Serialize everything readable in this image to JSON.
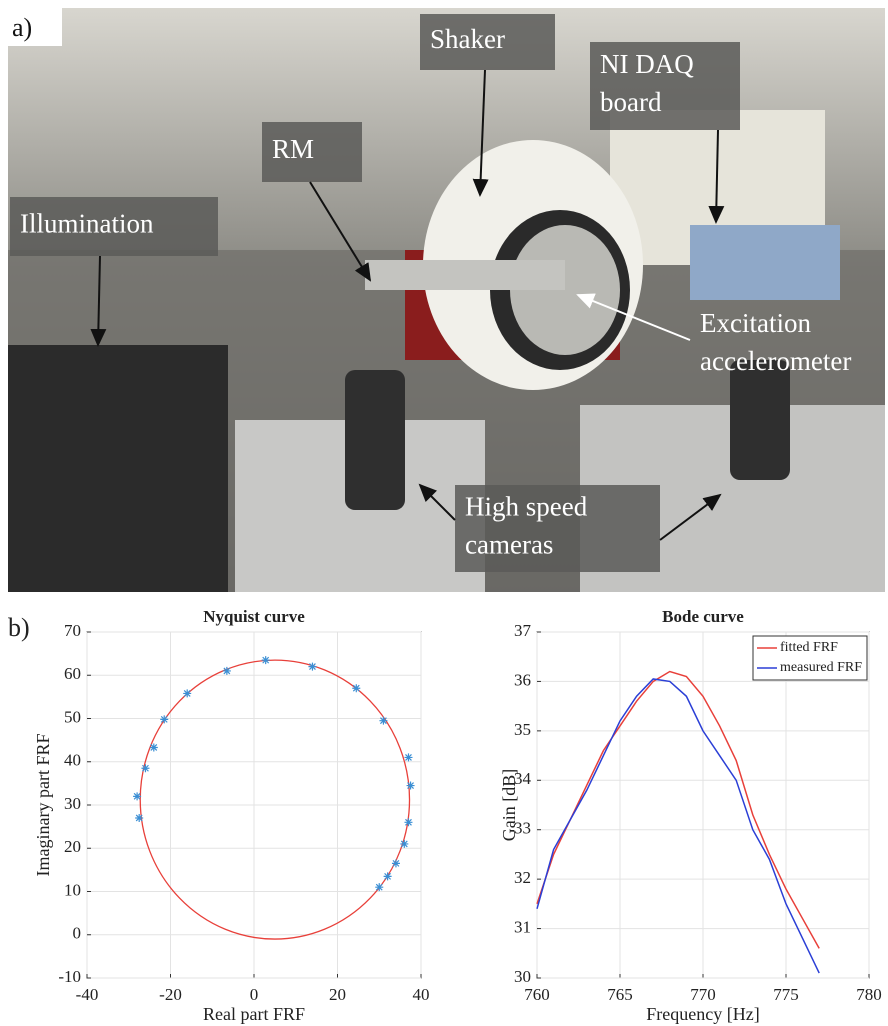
{
  "figure": {
    "panel_a": "a)",
    "panel_b": "b)",
    "photo_labels": [
      [
        "Shaker"
      ],
      [
        "NI DAQ",
        "board"
      ],
      [
        "RM"
      ],
      [
        "Illumination"
      ],
      [
        "Excitation",
        "accelerometer"
      ],
      [
        "High speed",
        "cameras"
      ]
    ]
  },
  "chart_data": [
    {
      "type": "scatter",
      "title": "Nyquist curve",
      "x_label": "Real part FRF",
      "y_label": "Imaginary part FRF",
      "xlim": [
        -40,
        40
      ],
      "xticks": [
        -40,
        -20,
        0,
        20,
        40
      ],
      "ylim": [
        -10,
        70
      ],
      "yticks": [
        -10,
        0,
        10,
        20,
        30,
        40,
        50,
        60,
        70
      ],
      "grid": true,
      "series": [
        {
          "color": "#3b8fd4",
          "marker": "*",
          "x": [
            2.8,
            14,
            24.5,
            31,
            37,
            37.5,
            37,
            36,
            34,
            32,
            30,
            -6.5,
            -16,
            -21.5,
            -24,
            -26,
            -28,
            -27.5
          ],
          "y": [
            63.5,
            62,
            57,
            49.5,
            41,
            34.5,
            26,
            21,
            16.5,
            13.5,
            11,
            61,
            55.8,
            49.8,
            43.3,
            38.5,
            32,
            27
          ]
        }
      ],
      "circle": {
        "color": "#e8403a",
        "center": [
          5,
          31.25
        ],
        "radius": 32.25
      }
    },
    {
      "type": "line",
      "title": "Bode curve",
      "x_label": "Frequency  [Hz]",
      "y_label": "Gain  [dB]",
      "xlim": [
        760,
        780
      ],
      "xticks": [
        760,
        765,
        770,
        775,
        780
      ],
      "ylim": [
        30,
        37
      ],
      "yticks": [
        30,
        31,
        32,
        33,
        34,
        35,
        36,
        37
      ],
      "grid": true,
      "legend": "upper right",
      "x": [
        760,
        761,
        762,
        763,
        764,
        765,
        766,
        767,
        768,
        769,
        770,
        771,
        772,
        773,
        774,
        775,
        776,
        777
      ],
      "series": [
        {
          "name": "fitted FRF",
          "color": "#e8403a",
          "values": [
            31.5,
            32.5,
            33.2,
            33.9,
            34.6,
            35.1,
            35.6,
            36.0,
            36.2,
            36.1,
            35.7,
            35.1,
            34.4,
            33.3,
            32.5,
            31.8,
            31.2,
            30.6
          ]
        },
        {
          "name": "measured FRF",
          "color": "#2b3fd6",
          "values": [
            31.4,
            32.6,
            33.2,
            33.8,
            34.5,
            35.2,
            35.7,
            36.05,
            36.0,
            35.7,
            35.0,
            34.5,
            34.0,
            33.0,
            32.4,
            31.5,
            30.8,
            30.1
          ]
        }
      ]
    }
  ]
}
